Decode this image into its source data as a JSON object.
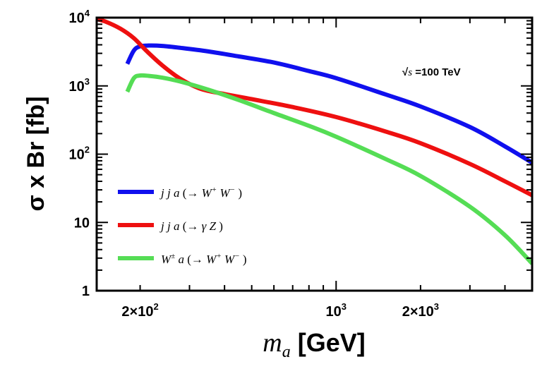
{
  "chart_data": {
    "type": "line",
    "title": "",
    "xlabel_main": "m",
    "xlabel_sub": "a",
    "xlabel_unit": "[GeV]",
    "ylabel": "σ x Br [fb]",
    "xscale": "log",
    "yscale": "log",
    "xlim": [
      140,
      5000
    ],
    "ylim": [
      1,
      10000
    ],
    "annotation": {
      "sqrt_symbol": "√",
      "s": "s",
      "rest": " =100 TeV"
    },
    "xticks": [
      {
        "value": 200,
        "base": "2×10",
        "exp": "2"
      },
      {
        "value": 1000,
        "base": "10",
        "exp": "3"
      },
      {
        "value": 2000,
        "base": "2×10",
        "exp": "3"
      }
    ],
    "yticks": [
      {
        "value": 1,
        "base": "1",
        "exp": ""
      },
      {
        "value": 10,
        "base": "10",
        "exp": ""
      },
      {
        "value": 100,
        "base": "10",
        "exp": "2"
      },
      {
        "value": 1000,
        "base": "10",
        "exp": "3"
      },
      {
        "value": 10000,
        "base": "10",
        "exp": "4"
      }
    ],
    "legend_position": "bottom-left",
    "series": [
      {
        "name": "jja (→W+W−)",
        "legend": {
          "pre": "j j a",
          "open": " (→ ",
          "p1": "W",
          "s1": "+",
          "p2": " W",
          "s2": "−",
          "close": " )"
        },
        "color": "#1010ee",
        "x": [
          180,
          190,
          200,
          215,
          240,
          280,
          350,
          450,
          600,
          800,
          1000,
          1500,
          2000,
          3000,
          4000,
          5000
        ],
        "y": [
          2100,
          3300,
          3800,
          3900,
          3850,
          3600,
          3200,
          2700,
          2200,
          1650,
          1300,
          750,
          500,
          250,
          130,
          75
        ]
      },
      {
        "name": "jja (→γZ)",
        "legend": {
          "pre": "j j a",
          "open": " (→ ",
          "p1": "γ",
          "s1": "",
          "p2": " Z",
          "s2": "",
          "close": " )"
        },
        "color": "#ee1010",
        "x": [
          140,
          150,
          170,
          190,
          210,
          240,
          280,
          330,
          400,
          500,
          700,
          1000,
          1500,
          2000,
          3000,
          4000,
          5000
        ],
        "y": [
          9500,
          8800,
          6900,
          5000,
          3300,
          2000,
          1250,
          900,
          760,
          640,
          490,
          350,
          215,
          145,
          72,
          40,
          25
        ]
      },
      {
        "name": "W±a (→W+W−)",
        "legend": {
          "pre": "W",
          "pre_sup": "±",
          "pre2": " a",
          "open": " (→ ",
          "p1": "W",
          "s1": "+",
          "p2": " W",
          "s2": "−",
          "close": " )"
        },
        "color": "#55dd55",
        "x": [
          180,
          190,
          200,
          215,
          240,
          280,
          350,
          450,
          600,
          800,
          1000,
          1500,
          2000,
          3000,
          4000,
          5000
        ],
        "y": [
          820,
          1300,
          1420,
          1400,
          1320,
          1150,
          880,
          620,
          400,
          260,
          180,
          85,
          48,
          17,
          6.5,
          2.5
        ]
      }
    ]
  }
}
